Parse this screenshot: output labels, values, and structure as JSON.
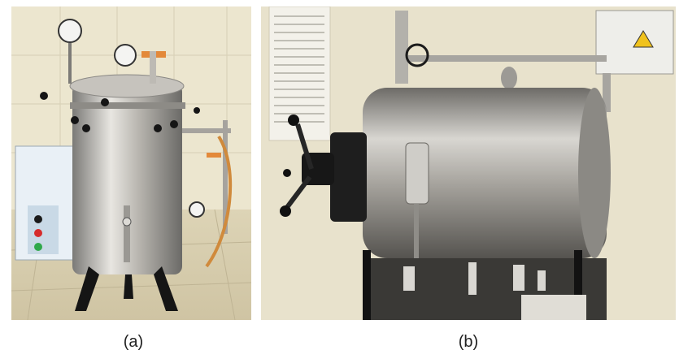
{
  "figure": {
    "panels": [
      {
        "id": "a",
        "caption": "(a)",
        "subject": "vertical-autoclave-photo"
      },
      {
        "id": "b",
        "caption": "(b)",
        "subject": "horizontal-autoclave-photo"
      }
    ]
  },
  "colors": {
    "wall": "#e9e2c9",
    "floor": "#d9cfb3",
    "steel": "#a9a7a3",
    "dark": "#1c1c1c",
    "orange": "#e3893a"
  }
}
